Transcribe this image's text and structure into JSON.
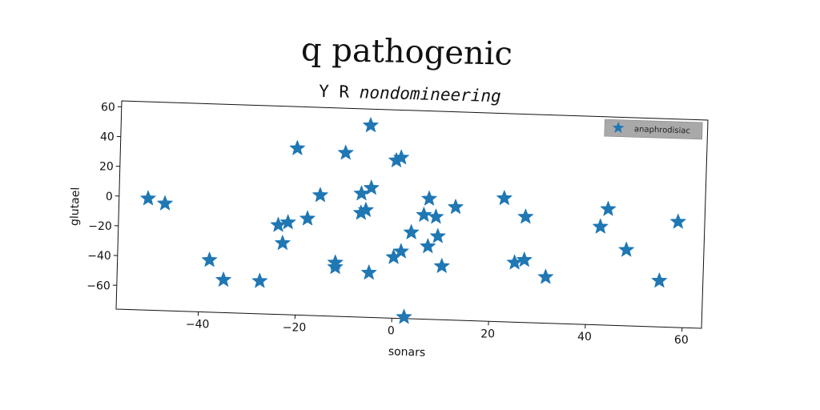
{
  "figure": {
    "suptitle": "q pathogenic"
  },
  "chart_data": {
    "type": "scatter",
    "title": "Y R nondomineering",
    "title_parts": [
      "Y R ",
      "nondomineering"
    ],
    "xlabel": "sonars",
    "ylabel": "glutael",
    "xlim": [
      -57,
      64
    ],
    "ylim": [
      -76,
      64
    ],
    "xticks": [
      -40,
      -20,
      0,
      20,
      40,
      60
    ],
    "yticks": [
      -60,
      -40,
      -20,
      0,
      20,
      40,
      60
    ],
    "grid": false,
    "legend": {
      "position": "top-right"
    },
    "series": [
      {
        "name": "anaphrodisiac",
        "marker": "star",
        "color": "#1f77b4",
        "points": [
          [
            -51,
            -1
          ],
          [
            -47.5,
            -4
          ],
          [
            -38,
            -41
          ],
          [
            -35,
            -54
          ],
          [
            -27.5,
            -54
          ],
          [
            -24,
            -16
          ],
          [
            -22,
            -14
          ],
          [
            -23,
            -28
          ],
          [
            -20.5,
            36
          ],
          [
            -18,
            -11
          ],
          [
            -15.5,
            5
          ],
          [
            -10.5,
            34
          ],
          [
            -12,
            -43
          ],
          [
            -12,
            -40
          ],
          [
            -7,
            7
          ],
          [
            -7,
            -6
          ],
          [
            -6,
            -4
          ],
          [
            -5,
            11
          ],
          [
            -5.5,
            53
          ],
          [
            -5,
            -46
          ],
          [
            0,
            30
          ],
          [
            1,
            32
          ],
          [
            0,
            -35
          ],
          [
            1.5,
            -31
          ],
          [
            2.5,
            -75
          ],
          [
            3.5,
            -18
          ],
          [
            6,
            -6
          ],
          [
            7,
            5
          ],
          [
            7,
            -27
          ],
          [
            8.5,
            -7
          ],
          [
            9,
            -20
          ],
          [
            10,
            -40
          ],
          [
            12.5,
            0
          ],
          [
            22.5,
            7
          ],
          [
            25,
            -36
          ],
          [
            27,
            -5
          ],
          [
            27,
            -34
          ],
          [
            31.5,
            -45
          ],
          [
            42.5,
            -10
          ],
          [
            44,
            2
          ],
          [
            48,
            -25
          ],
          [
            55,
            -45
          ],
          [
            58.5,
            -5
          ]
        ]
      }
    ]
  }
}
